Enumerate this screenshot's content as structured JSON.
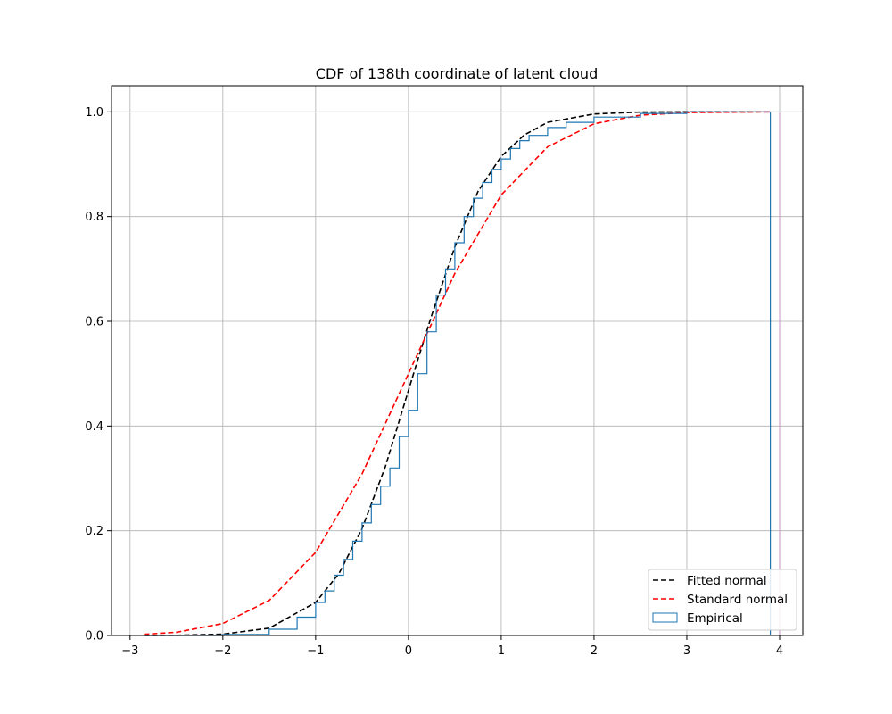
{
  "chart_data": {
    "type": "line",
    "title": "CDF of 138th coordinate of latent cloud",
    "xlabel": "",
    "ylabel": "",
    "xlim": [
      -3.2,
      4.25
    ],
    "ylim": [
      0.0,
      1.05
    ],
    "xticks": [
      -3,
      -2,
      -1,
      0,
      1,
      2,
      3,
      4
    ],
    "xtick_labels": [
      "−3",
      "−2",
      "−1",
      "0",
      "1",
      "2",
      "3",
      "4"
    ],
    "yticks": [
      0.0,
      0.2,
      0.4,
      0.6,
      0.8,
      1.0
    ],
    "ytick_labels": [
      "0.0",
      "0.2",
      "0.4",
      "0.6",
      "0.8",
      "1.0"
    ],
    "grid": true,
    "legend_position": "bottom-right",
    "series": [
      {
        "name": "Fitted normal",
        "style": "dashed",
        "color": "#000000",
        "x": [
          -2.85,
          -2.5,
          -2.0,
          -1.5,
          -1.0,
          -0.75,
          -0.5,
          -0.25,
          0.0,
          0.1,
          0.25,
          0.5,
          0.75,
          1.0,
          1.25,
          1.5,
          2.0,
          2.5,
          3.0,
          3.9
        ],
        "y": [
          0.0,
          0.0003,
          0.0025,
          0.014,
          0.063,
          0.118,
          0.204,
          0.322,
          0.468,
          0.526,
          0.611,
          0.742,
          0.848,
          0.915,
          0.956,
          0.98,
          0.996,
          0.9995,
          1.0,
          1.0
        ]
      },
      {
        "name": "Standard normal",
        "style": "dashed",
        "color": "#ff0000",
        "x": [
          -2.85,
          -2.5,
          -2.0,
          -1.5,
          -1.0,
          -0.5,
          0.0,
          0.5,
          1.0,
          1.5,
          2.0,
          2.5,
          3.0,
          3.9
        ],
        "y": [
          0.0022,
          0.0062,
          0.0228,
          0.0668,
          0.1587,
          0.3085,
          0.5,
          0.6915,
          0.8413,
          0.9332,
          0.9772,
          0.9938,
          0.9987,
          1.0
        ]
      },
      {
        "name": "Empirical",
        "style": "step",
        "color": "#1f77b4",
        "x": [
          -2.85,
          -2.0,
          -1.5,
          -1.2,
          -1.0,
          -0.9,
          -0.8,
          -0.7,
          -0.6,
          -0.5,
          -0.4,
          -0.3,
          -0.2,
          -0.1,
          0.0,
          0.1,
          0.2,
          0.3,
          0.4,
          0.5,
          0.6,
          0.7,
          0.8,
          0.9,
          1.0,
          1.1,
          1.2,
          1.3,
          1.5,
          1.7,
          2.0,
          2.5,
          3.0,
          3.9
        ],
        "y": [
          0.0,
          0.002,
          0.012,
          0.035,
          0.063,
          0.085,
          0.115,
          0.145,
          0.18,
          0.215,
          0.25,
          0.285,
          0.32,
          0.38,
          0.43,
          0.5,
          0.58,
          0.65,
          0.7,
          0.75,
          0.8,
          0.835,
          0.865,
          0.89,
          0.91,
          0.93,
          0.945,
          0.955,
          0.97,
          0.98,
          0.99,
          0.997,
          1.0,
          1.0
        ]
      }
    ],
    "vertical_lines": [
      {
        "x": 3.9,
        "color": "#1f77b4"
      },
      {
        "x": 4.0,
        "color": "#d4a3d0"
      }
    ]
  }
}
